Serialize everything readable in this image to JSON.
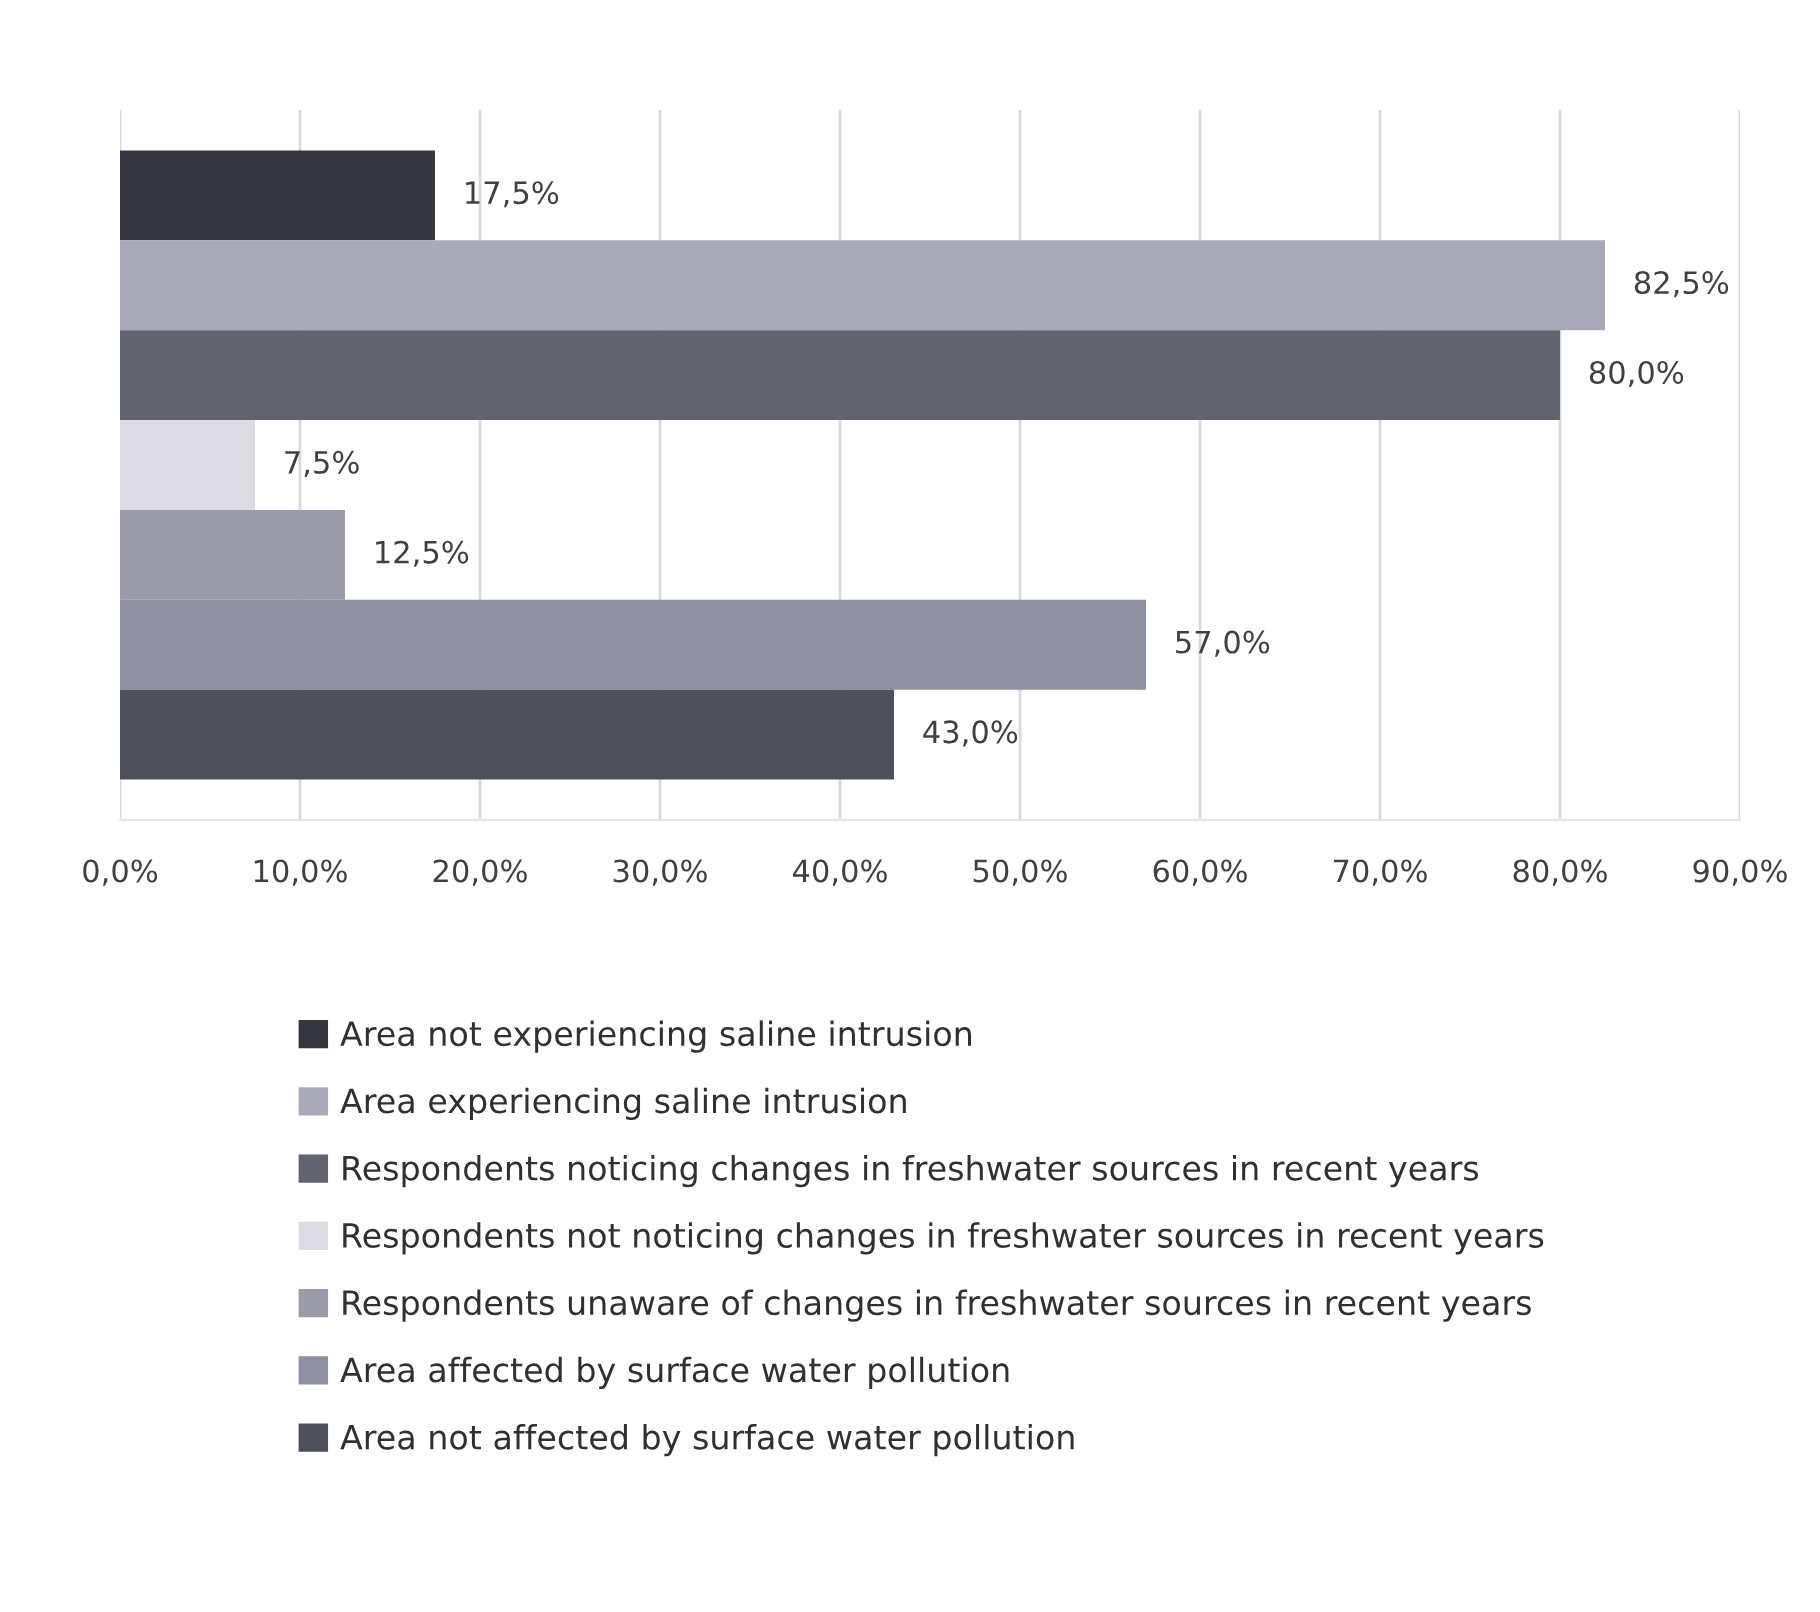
{
  "chart_data": {
    "type": "bar",
    "orientation": "horizontal",
    "categories": [
      null
    ],
    "series": [
      {
        "name": "Area not experiencing saline intrusion",
        "color": "#35363d",
        "values": [
          17.5
        ],
        "value_labels": [
          "17,5%"
        ]
      },
      {
        "name": "Area experiencing saline intrusion",
        "color": "#aaa9ba",
        "values": [
          82.5
        ],
        "value_labels": [
          "82,5%"
        ]
      },
      {
        "name": "Respondents noticing changes in freshwater sources in recent years",
        "color": "#61636f",
        "values": [
          80.0
        ],
        "value_labels": [
          "80,0%"
        ]
      },
      {
        "name": "Respondents not noticing changes in freshwater sources in recent years",
        "color": "#dcdbe2",
        "values": [
          7.5
        ],
        "value_labels": [
          "7,5%"
        ]
      },
      {
        "name": "Respondents unaware of changes in freshwater sources in recent years",
        "color": "#9c9ba9",
        "values": [
          12.5
        ],
        "value_labels": [
          "12,5%"
        ]
      },
      {
        "name": "Area affected by surface water pollution",
        "color": "#8e8fa0",
        "values": [
          57.0
        ],
        "value_labels": [
          "57,0%"
        ]
      },
      {
        "name": "Area not affected by surface water pollution",
        "color": "#4e505b",
        "values": [
          43.0
        ],
        "value_labels": [
          "43,0%"
        ]
      }
    ],
    "xlim": [
      0,
      90
    ],
    "xticks": [
      {
        "value": 0,
        "label": "0,0%"
      },
      {
        "value": 10,
        "label": "10,0%"
      },
      {
        "value": 20,
        "label": "20,0%"
      },
      {
        "value": 30,
        "label": "30,0%"
      },
      {
        "value": 40,
        "label": "40,0%"
      },
      {
        "value": 50,
        "label": "50,0%"
      },
      {
        "value": 60,
        "label": "60,0%"
      },
      {
        "value": 70,
        "label": "70,0%"
      },
      {
        "value": 80,
        "label": "80,0%"
      },
      {
        "value": 90,
        "label": "90,0%"
      }
    ],
    "grid": "x",
    "legend": "bottom"
  }
}
